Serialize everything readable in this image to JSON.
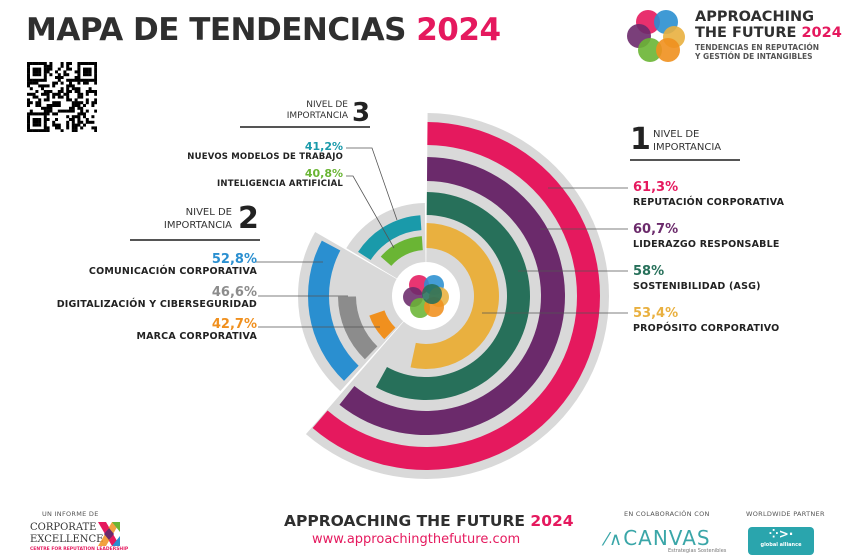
{
  "header": {
    "title_main": "MAPA DE TENDENCIAS",
    "title_year": "2024"
  },
  "brand": {
    "line1": "APPROACHING",
    "line2": "THE FUTURE",
    "year": "2024",
    "sub1": "TENDENCIAS EN REPUTACIÓN",
    "sub2": "Y GESTIÓN DE INTANGIBLES"
  },
  "levels": [
    {
      "label1": "NIVEL DE",
      "label2": "IMPORTANCIA",
      "number": "1",
      "items": [
        {
          "pct": "61,3%",
          "value": 61.3,
          "label": "REPUTACIÓN CORPORATIVA",
          "color": "#e5195e"
        },
        {
          "pct": "60,7%",
          "value": 60.7,
          "label": "LIDERAZGO RESPONSABLE",
          "color": "#6b2a6b"
        },
        {
          "pct": "58%",
          "value": 58,
          "label": "SOSTENIBILIDAD (ASG)",
          "color": "#27705a"
        },
        {
          "pct": "53,4%",
          "value": 53.4,
          "label": "PROPÓSITO CORPORATIVO",
          "color": "#e9b03f"
        }
      ]
    },
    {
      "label1": "NIVEL DE",
      "label2": "IMPORTANCIA",
      "number": "2",
      "items": [
        {
          "pct": "52,8%",
          "value": 52.8,
          "label": "COMUNICACIÓN CORPORATIVA",
          "color": "#2a8fd0"
        },
        {
          "pct": "46,6%",
          "value": 46.6,
          "label": "DIGITALIZACIÓN Y CIBERSEGURIDAD",
          "color": "#8c8c8c"
        },
        {
          "pct": "42,7%",
          "value": 42.7,
          "label": "MARCA CORPORATIVA",
          "color": "#f0901e"
        }
      ]
    },
    {
      "label1": "NIVEL DE",
      "label2": "IMPORTANCIA",
      "number": "3",
      "items": [
        {
          "pct": "41,2%",
          "value": 41.2,
          "label": "NUEVOS MODELOS DE TRABAJO",
          "color": "#1a9aaa"
        },
        {
          "pct": "40,8%",
          "value": 40.8,
          "label": "INTELIGENCIA ARTIFICIAL",
          "color": "#6ab534"
        }
      ]
    }
  ],
  "footer": {
    "report_by": "UN INFORME DE",
    "ce_line1": "CORPORATE",
    "ce_line2": "EXCELLENCE",
    "ce_sub": "CENTRE FOR REPUTATION LEADERSHIP",
    "title": "APPROACHING THE FUTURE",
    "year": "2024",
    "url": "www.approachingthefuture.com",
    "collab": "EN COLABORACIÓN CON",
    "canvas": "CANVAS",
    "canvas_sub": "Estrategias Sostenibles",
    "partner": "WORLDWIDE PARTNER",
    "ga": "global alliance"
  }
}
